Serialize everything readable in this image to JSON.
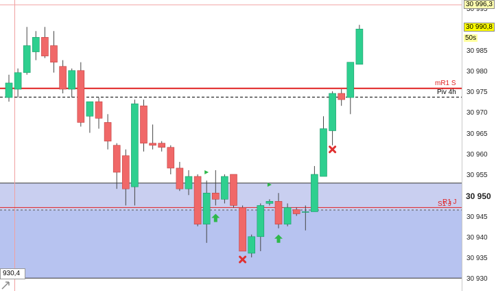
{
  "price_axis": {
    "ticks": [
      "30 995",
      "30 990",
      "30 985",
      "30 980",
      "30 975",
      "30 970",
      "30 965",
      "30 960",
      "30 955",
      "30 950",
      "30 945",
      "30 940",
      "30 935",
      "30 930"
    ],
    "bold_tick": "30 950",
    "high_tag": "30 996,3",
    "last_tag": "30 990,8",
    "timer": "50s",
    "cursor_value": "930,4"
  },
  "levels": {
    "mr1": {
      "label": "mR1 S",
      "value": 30976.2,
      "color": "#e02020"
    },
    "piv": {
      "label": "Piv 4h",
      "value": 30974.1,
      "color": "#000000"
    },
    "s1": {
      "label": "S1 J",
      "label2": "R1 J",
      "value": 30947.5,
      "color": "#e02020"
    },
    "zone_top": 30953.4,
    "zone_mid": 30946.9,
    "zone_bottom": 30930.5
  },
  "colors": {
    "bull": "#2ecf8f",
    "bear": "#f06868",
    "zone": "#b7c3f0",
    "crosshair": "#f0a0a0"
  },
  "chart_data": {
    "type": "candlestick",
    "candles": [
      {
        "o": 30974.0,
        "h": 30979.5,
        "l": 30973.0,
        "c": 30977.5
      },
      {
        "o": 30976.0,
        "h": 30981.0,
        "l": 30974.0,
        "c": 30980.0
      },
      {
        "o": 30980.0,
        "h": 30991.0,
        "l": 30979.5,
        "c": 30986.5
      },
      {
        "o": 30985.0,
        "h": 30990.0,
        "l": 30983.0,
        "c": 30988.5
      },
      {
        "o": 30988.5,
        "h": 30991.0,
        "l": 30983.5,
        "c": 30984.0
      },
      {
        "o": 30986.5,
        "h": 30990.0,
        "l": 30980.0,
        "c": 30982.5
      },
      {
        "o": 30981.5,
        "h": 30983.0,
        "l": 30975.0,
        "c": 30976.0
      },
      {
        "o": 30976.0,
        "h": 30981.0,
        "l": 30974.0,
        "c": 30980.5
      },
      {
        "o": 30980.5,
        "h": 30982.5,
        "l": 30967.0,
        "c": 30968.0
      },
      {
        "o": 30969.5,
        "h": 30972.5,
        "l": 30965.5,
        "c": 30973.0
      },
      {
        "o": 30973.0,
        "h": 30974.0,
        "l": 30966.5,
        "c": 30969.0
      },
      {
        "o": 30968.0,
        "h": 30970.0,
        "l": 30961.5,
        "c": 30963.5
      },
      {
        "o": 30962.5,
        "h": 30963.0,
        "l": 30952.0,
        "c": 30956.0
      },
      {
        "o": 30960.0,
        "h": 30961.5,
        "l": 30948.0,
        "c": 30952.0
      },
      {
        "o": 30952.5,
        "h": 30973.5,
        "l": 30948.0,
        "c": 30972.5
      },
      {
        "o": 30972.0,
        "h": 30973.5,
        "l": 30961.0,
        "c": 30963.0
      },
      {
        "o": 30963.0,
        "h": 30967.5,
        "l": 30961.5,
        "c": 30962.5
      },
      {
        "o": 30963.0,
        "h": 30963.5,
        "l": 30961.0,
        "c": 30962.0
      },
      {
        "o": 30962.0,
        "h": 30962.5,
        "l": 30955.5,
        "c": 30957.0
      },
      {
        "o": 30957.0,
        "h": 30958.5,
        "l": 30951.5,
        "c": 30952.0
      },
      {
        "o": 30952.0,
        "h": 30956.5,
        "l": 30950.5,
        "c": 30955.0
      },
      {
        "o": 30955.0,
        "h": 30955.5,
        "l": 30943.0,
        "c": 30943.5
      },
      {
        "o": 30943.5,
        "h": 30954.0,
        "l": 30939.0,
        "c": 30951.0
      },
      {
        "o": 30951.0,
        "h": 30956.5,
        "l": 30948.0,
        "c": 30949.5
      },
      {
        "o": 30949.5,
        "h": 30955.5,
        "l": 30948.5,
        "c": 30955.0
      },
      {
        "o": 30955.5,
        "h": 30955.5,
        "l": 30947.5,
        "c": 30948.0
      },
      {
        "o": 30947.5,
        "h": 30948.0,
        "l": 30937.0,
        "c": 30937.0
      },
      {
        "o": 30936.5,
        "h": 30941.0,
        "l": 30935.5,
        "c": 30940.5
      },
      {
        "o": 30940.5,
        "h": 30948.5,
        "l": 30937.0,
        "c": 30948.0
      },
      {
        "o": 30948.5,
        "h": 30949.5,
        "l": 30948.0,
        "c": 30949.0
      },
      {
        "o": 30949.0,
        "h": 30951.0,
        "l": 30942.5,
        "c": 30943.5
      },
      {
        "o": 30943.5,
        "h": 30948.5,
        "l": 30943.0,
        "c": 30947.5
      },
      {
        "o": 30947.0,
        "h": 30947.5,
        "l": 30945.5,
        "c": 30946.0
      },
      {
        "o": 30946.5,
        "h": 30948.0,
        "l": 30942.0,
        "c": 30946.5
      },
      {
        "o": 30946.5,
        "h": 30957.5,
        "l": 30946.5,
        "c": 30955.5
      },
      {
        "o": 30955.0,
        "h": 30969.5,
        "l": 30955.0,
        "c": 30966.5
      },
      {
        "o": 30966.0,
        "h": 30975.5,
        "l": 30962.5,
        "c": 30975.0
      },
      {
        "o": 30975.0,
        "h": 30976.0,
        "l": 30972.0,
        "c": 30973.5
      },
      {
        "o": 30974.0,
        "h": 30982.5,
        "l": 30970.0,
        "c": 30982.5
      },
      {
        "o": 30982.0,
        "h": 30991.5,
        "l": 30982.0,
        "c": 30990.5
      }
    ],
    "markers": [
      {
        "type": "arrow-up",
        "candle": 23,
        "value": 30945.0
      },
      {
        "type": "arrow-up",
        "candle": 30,
        "value": 30940.0
      },
      {
        "type": "cross",
        "candle": 26,
        "value": 30935.0
      },
      {
        "type": "cross",
        "candle": 36,
        "value": 30961.5
      },
      {
        "type": "flag",
        "candle": 22,
        "value": 30956.0
      },
      {
        "type": "flag",
        "candle": 29,
        "value": 30953.0
      }
    ]
  }
}
